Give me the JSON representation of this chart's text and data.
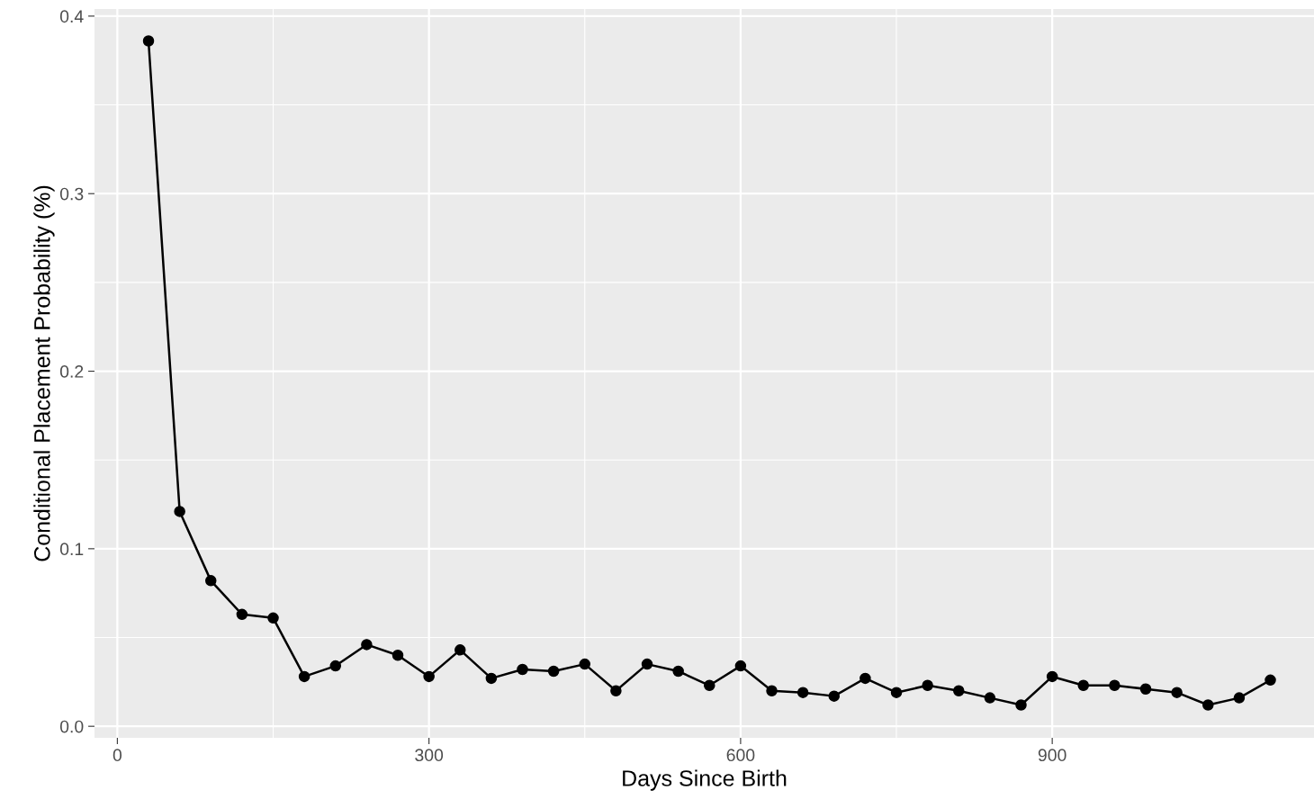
{
  "chart_data": {
    "type": "line",
    "xlabel": "Days Since Birth",
    "ylabel": "Conditional Placement Probability (%)",
    "x": [
      30,
      60,
      90,
      120,
      150,
      180,
      210,
      240,
      270,
      300,
      330,
      360,
      390,
      420,
      450,
      480,
      510,
      540,
      570,
      600,
      630,
      660,
      690,
      720,
      750,
      780,
      810,
      840,
      870,
      900,
      930,
      960,
      990,
      1020,
      1050,
      1080,
      1110
    ],
    "series": [
      {
        "color": "#000000",
        "values": [
          0.386,
          0.121,
          0.082,
          0.063,
          0.061,
          0.028,
          0.034,
          0.046,
          0.04,
          0.028,
          0.043,
          0.027,
          0.032,
          0.031,
          0.035,
          0.02,
          0.035,
          0.031,
          0.023,
          0.034,
          0.02,
          0.019,
          0.017,
          0.027,
          0.019,
          0.023,
          0.02,
          0.016,
          0.012,
          0.028,
          0.023,
          0.023,
          0.021,
          0.019,
          0.012,
          0.016,
          0.026
        ]
      }
    ],
    "xlim": [
      -22,
      1152
    ],
    "ylim": [
      -0.0065,
      0.404
    ],
    "xticks": [
      0,
      300,
      600,
      900
    ],
    "yticks": [
      {
        "value": 0,
        "label": "0.0"
      },
      0.1,
      0.2,
      0.3,
      0.4
    ],
    "grid": true,
    "marker": "circle",
    "line_style": "solid"
  }
}
